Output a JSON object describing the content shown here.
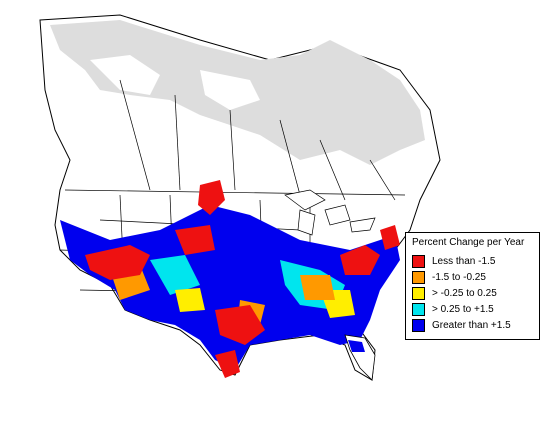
{
  "legend": {
    "title": "Percent Change per Year",
    "items": [
      {
        "label": "Less than -1.5",
        "color": "#ee1111"
      },
      {
        "label": "-1.5 to -0.25",
        "color": "#ff9900"
      },
      {
        "label": "> -0.25 to 0.25",
        "color": "#ffee00"
      },
      {
        "label": "> 0.25 to +1.5",
        "color": "#00e5ee"
      },
      {
        "label": "Greater than +1.5",
        "color": "#0000ee"
      }
    ]
  },
  "colors": {
    "background": "#ffffff",
    "land": "#ffffff",
    "no_data_north": "#dddddd",
    "borders": "#000000"
  }
}
